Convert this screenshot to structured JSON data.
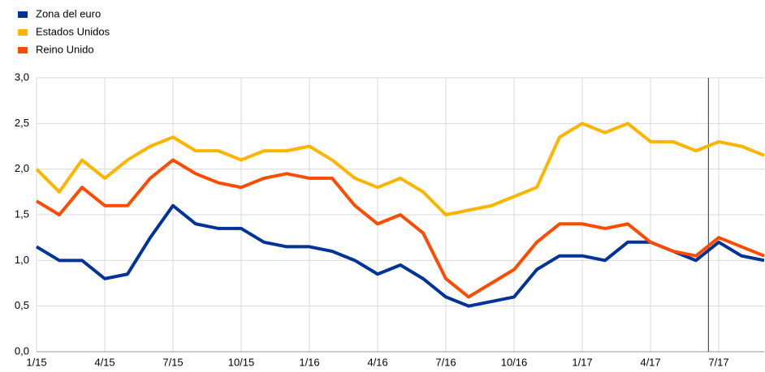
{
  "chart_data": {
    "type": "line",
    "categories": [
      "1/15",
      null,
      null,
      "4/15",
      null,
      null,
      "7/15",
      null,
      null,
      "10/15",
      null,
      null,
      "1/16",
      null,
      null,
      "4/16",
      null,
      null,
      "7/16",
      null,
      null,
      "10/16",
      null,
      null,
      "1/17",
      null,
      null,
      "4/17",
      null,
      null,
      "7/17",
      null,
      null
    ],
    "series": [
      {
        "name": "Zona del euro",
        "color": "#003399",
        "values": [
          1.15,
          1.0,
          1.0,
          0.8,
          0.85,
          1.25,
          1.6,
          1.4,
          1.35,
          1.35,
          1.2,
          1.15,
          1.15,
          1.1,
          1.0,
          0.85,
          0.95,
          0.8,
          0.6,
          0.5,
          0.55,
          0.6,
          0.9,
          1.05,
          1.05,
          1.0,
          1.2,
          1.2,
          1.1,
          1.0,
          1.2,
          1.05,
          1.0
        ]
      },
      {
        "name": "Estados Unidos",
        "color": "#ffb400",
        "values": [
          2.0,
          1.75,
          2.1,
          1.9,
          2.1,
          2.25,
          2.35,
          2.2,
          2.2,
          2.1,
          2.2,
          2.2,
          2.25,
          2.1,
          1.9,
          1.8,
          1.9,
          1.75,
          1.5,
          1.55,
          1.6,
          1.7,
          1.8,
          2.35,
          2.5,
          2.4,
          2.5,
          2.3,
          2.3,
          2.2,
          2.3,
          2.25,
          2.15
        ]
      },
      {
        "name": "Reino Unido",
        "color": "#ff4b00",
        "values": [
          1.65,
          1.5,
          1.8,
          1.6,
          1.6,
          1.9,
          2.1,
          1.95,
          1.85,
          1.8,
          1.9,
          1.95,
          1.9,
          1.9,
          1.6,
          1.4,
          1.5,
          1.3,
          0.8,
          0.6,
          0.75,
          0.9,
          1.2,
          1.4,
          1.4,
          1.35,
          1.4,
          1.2,
          1.1,
          1.05,
          1.25,
          1.15,
          1.05
        ]
      }
    ],
    "ylim": [
      0,
      3
    ],
    "yticks": [
      {
        "value": 0,
        "label": "0,0"
      },
      {
        "value": 0.5,
        "label": "0,5"
      },
      {
        "value": 1,
        "label": "1,0"
      },
      {
        "value": 1.5,
        "label": "1,5"
      },
      {
        "value": 2,
        "label": "2,0"
      },
      {
        "value": 2.5,
        "label": "2,5"
      },
      {
        "value": 3,
        "label": "3,0"
      }
    ],
    "grid": true,
    "legend": "top-left"
  }
}
